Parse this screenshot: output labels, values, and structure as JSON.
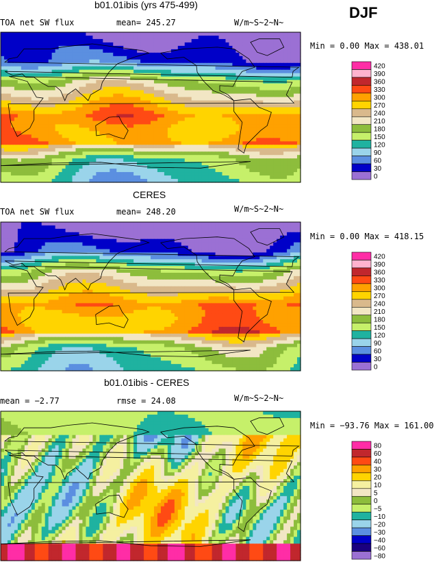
{
  "season": "DJF",
  "panels": [
    {
      "title": "b01.01ibis (yrs 475-499)",
      "left_label": "TOA net SW flux",
      "stat_label": "mean= 245.27",
      "units": "W/m~S~2~N~",
      "range_label": "Min =    0.00 Max = 438.01"
    },
    {
      "title": "CERES",
      "left_label": "TOA net SW flux",
      "stat_label": "mean= 248.20",
      "units": "W/m~S~2~N~",
      "range_label": "Min =    0.00 Max = 418.15"
    },
    {
      "title": "b01.01ibis - CERES",
      "left_label": "mean =  −2.77",
      "stat_label": "rmse =  24.08",
      "units": "W/m~S~2~N~",
      "range_label": "Min = −93.76 Max = 161.00"
    }
  ],
  "chart_data": [
    {
      "type": "heatmap",
      "title": "b01.01ibis (yrs 475-499)",
      "variable": "TOA net SW flux",
      "units": "W/m~S~2~N~",
      "mean": 245.27,
      "min": 0.0,
      "max": 438.01,
      "legend_levels": [
        "420",
        "390",
        "360",
        "330",
        "300",
        "270",
        "240",
        "210",
        "180",
        "150",
        "120",
        "90",
        "60",
        "30",
        "0"
      ],
      "legend_colors": [
        "#ff2da6",
        "#ffb3cf",
        "#c1272d",
        "#ff4a14",
        "#ffa100",
        "#ffd400",
        "#d9b98c",
        "#f2e6c4",
        "#8dbd3c",
        "#c6f06a",
        "#1fb2a0",
        "#9ad4ea",
        "#5b8fe0",
        "#0000c8",
        "#9b70d4"
      ]
    },
    {
      "type": "heatmap",
      "title": "CERES",
      "variable": "TOA net SW flux",
      "units": "W/m~S~2~N~",
      "mean": 248.2,
      "min": 0.0,
      "max": 418.15,
      "legend_levels": [
        "420",
        "390",
        "360",
        "330",
        "300",
        "270",
        "240",
        "210",
        "180",
        "150",
        "120",
        "90",
        "60",
        "30",
        "0"
      ],
      "legend_colors": [
        "#ff2da6",
        "#ffb3cf",
        "#c1272d",
        "#ff4a14",
        "#ffa100",
        "#ffd400",
        "#d9b98c",
        "#f2e6c4",
        "#8dbd3c",
        "#c6f06a",
        "#1fb2a0",
        "#9ad4ea",
        "#5b8fe0",
        "#0000c8",
        "#9b70d4"
      ]
    },
    {
      "type": "heatmap",
      "title": "b01.01ibis - CERES",
      "units": "W/m~S~2~N~",
      "mean": -2.77,
      "rmse": 24.08,
      "min": -93.76,
      "max": 161.0,
      "legend_levels": [
        "80",
        "60",
        "40",
        "30",
        "20",
        "10",
        "5",
        "0",
        "−5",
        "−10",
        "−20",
        "−30",
        "−40",
        "−60",
        "−80"
      ],
      "legend_colors": [
        "#ff2da6",
        "#c1272d",
        "#ff4a14",
        "#ffa100",
        "#ffd400",
        "#f5f0a0",
        "#f2e6c4",
        "#8dbd3c",
        "#c6f06a",
        "#1fb2a0",
        "#9ad4ea",
        "#5b8fe0",
        "#0000c8",
        "#1a0080",
        "#9b70d4"
      ]
    }
  ]
}
